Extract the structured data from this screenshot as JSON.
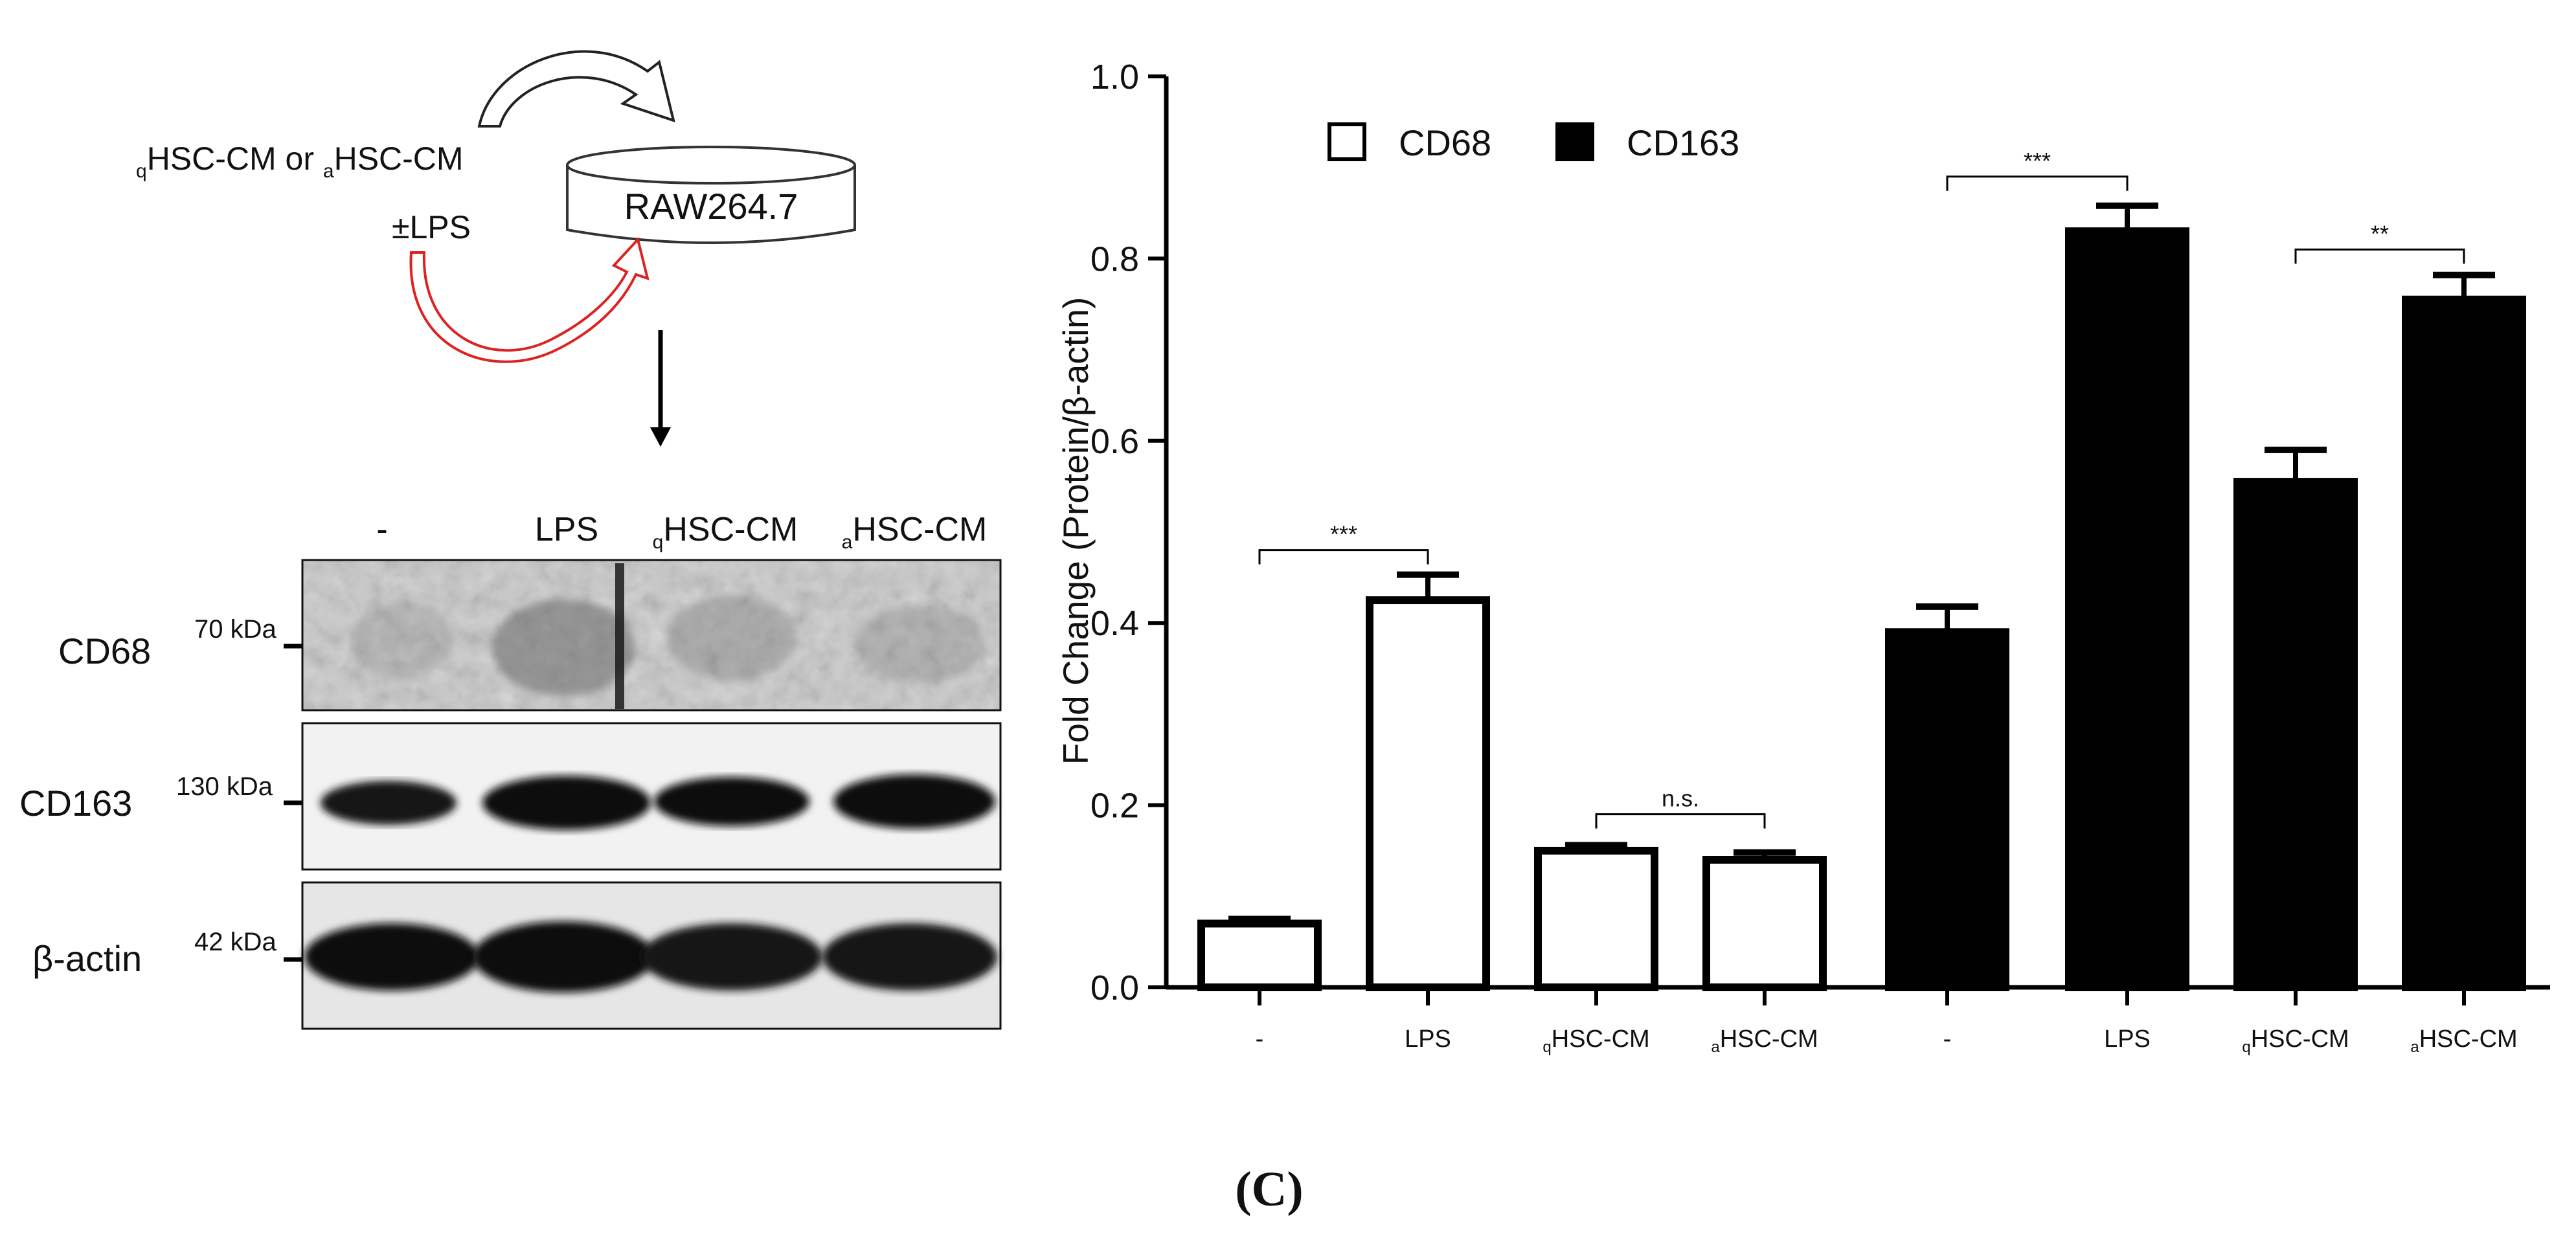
{
  "schematic": {
    "treatment_prefix_q": "q",
    "treatment_main_q": "HSC-CM or ",
    "treatment_prefix_a": "a",
    "treatment_main_a": "HSC-CM",
    "lps_label": "±LPS",
    "cell_line": "RAW264.7"
  },
  "western_blot": {
    "lanes": [
      {
        "prefix": "",
        "label": "-"
      },
      {
        "prefix": "",
        "label": "LPS"
      },
      {
        "prefix": "q",
        "label": "HSC-CM"
      },
      {
        "prefix": "a",
        "label": "HSC-CM"
      }
    ],
    "rows": [
      {
        "protein": "CD68",
        "marker": "70 kDa"
      },
      {
        "protein": "CD163",
        "marker": "130 kDa"
      },
      {
        "protein": "β-actin",
        "marker": "42 kDa"
      }
    ]
  },
  "chart_data": {
    "type": "bar",
    "ylabel": "Fold Change  (Protein/β-actin)",
    "ylim": [
      0,
      1.0
    ],
    "yticks": [
      "0.0",
      "0.2",
      "0.4",
      "0.6",
      "0.8",
      "1.0"
    ],
    "ytick_values": [
      0,
      0.2,
      0.4,
      0.6,
      0.8,
      1.0
    ],
    "legend_placement": "top-center",
    "series_colors": {
      "CD68": "#ffffff",
      "CD163": "#000000"
    },
    "bars": [
      {
        "series": "CD68",
        "prefix": "",
        "label": "-",
        "value": 0.07,
        "error": 0.005
      },
      {
        "series": "CD68",
        "prefix": "",
        "label": "LPS",
        "value": 0.425,
        "error": 0.028
      },
      {
        "series": "CD68",
        "prefix": "q",
        "label": "HSC-CM",
        "value": 0.15,
        "error": 0.006
      },
      {
        "series": "CD68",
        "prefix": "a",
        "label": "HSC-CM",
        "value": 0.14,
        "error": 0.008
      },
      {
        "series": "CD163",
        "prefix": "",
        "label": "-",
        "value": 0.39,
        "error": 0.028
      },
      {
        "series": "CD163",
        "prefix": "",
        "label": "LPS",
        "value": 0.83,
        "error": 0.028
      },
      {
        "series": "CD163",
        "prefix": "q",
        "label": "HSC-CM",
        "value": 0.555,
        "error": 0.035
      },
      {
        "series": "CD163",
        "prefix": "a",
        "label": "HSC-CM",
        "value": 0.755,
        "error": 0.027
      }
    ],
    "legend": [
      {
        "name": "CD68",
        "fill": "#ffffff"
      },
      {
        "name": "CD163",
        "fill": "#000000"
      }
    ],
    "significance": [
      {
        "from": 0,
        "to": 1,
        "y": 0.48,
        "text": "***"
      },
      {
        "from": 2,
        "to": 3,
        "y": 0.19,
        "text": "n.s."
      },
      {
        "from": 4,
        "to": 5,
        "y": 0.89,
        "text": "***"
      },
      {
        "from": 6,
        "to": 7,
        "y": 0.81,
        "text": "**"
      }
    ]
  },
  "panel_label": "(C)"
}
